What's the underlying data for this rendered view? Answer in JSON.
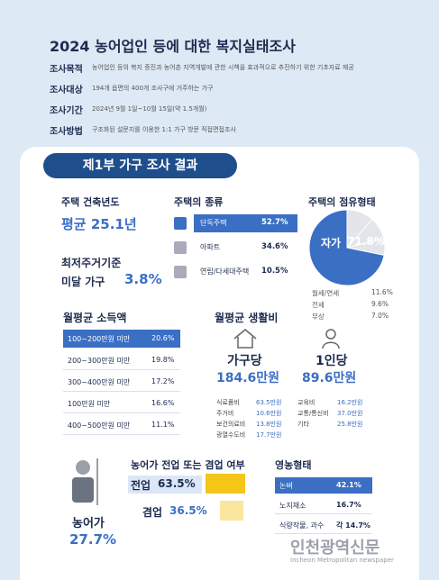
{
  "header": {
    "title": "2024 농어업인 등에 대한 복지실태조사",
    "rows": [
      {
        "label": "조사목적",
        "text": "농어업인 등의 복지 증진과 농어촌 지역개발에 관한 시책을 효과적으로 추진하기 위한 기초자료 제공"
      },
      {
        "label": "조사대상",
        "text": "194개 읍면의 400개 조사구에 거주하는 가구"
      },
      {
        "label": "조사기간",
        "text": "2024년 9월 1일~10월 15일(약 1.5개월)"
      },
      {
        "label": "조사방법",
        "text": "구조화된 설문지를 이용한 1:1 가구 방문 직접면접조사"
      }
    ]
  },
  "section": "제1부 가구 조사 결과",
  "building_age": {
    "title": "주택 건축년도",
    "value": "평균 25.1년"
  },
  "min_housing": {
    "title": "최저주거기준",
    "label": "미달 가구",
    "value": "3.8%"
  },
  "housing_type": {
    "title": "주택의 종류",
    "items": [
      {
        "name": "단독주택",
        "value": "52.7%"
      },
      {
        "name": "아파트",
        "value": "34.6%"
      },
      {
        "name": "연립/다세대주택",
        "value": "10.5%"
      }
    ]
  },
  "tenure": {
    "title": "주택의 점유형태",
    "slices": [
      {
        "name": "자가",
        "value": 71.8,
        "label": "71.8%",
        "color": "#3a6fc4"
      },
      {
        "name": "월세/연세",
        "value": 11.6,
        "label": "11.6%",
        "color": "#e3e5ea"
      },
      {
        "name": "전세",
        "value": 9.6,
        "label": "9.6%",
        "color": "#e3e5ea"
      },
      {
        "name": "무상",
        "value": 7.0,
        "label": "7.0%",
        "color": "#e3e5ea"
      }
    ]
  },
  "income": {
    "title": "월평균 소득액",
    "items": [
      {
        "name": "100~200만원 미만",
        "value": "20.6%"
      },
      {
        "name": "200~300만원 미만",
        "value": "19.8%"
      },
      {
        "name": "300~400만원 미만",
        "value": "17.2%"
      },
      {
        "name": "100만원 미만",
        "value": "16.6%"
      },
      {
        "name": "400~500만원 미만",
        "value": "11.1%"
      }
    ]
  },
  "living_cost": {
    "title": "월평균 생활비",
    "household": {
      "label": "가구당",
      "value": "184.6만원"
    },
    "person": {
      "label": "1인당",
      "value": "89.6만원"
    },
    "items": [
      {
        "name": "식료품비",
        "value": "63.5만원"
      },
      {
        "name": "주거비",
        "value": "10.6만원"
      },
      {
        "name": "보건의료비",
        "value": "13.8만원"
      },
      {
        "name": "광열수도비",
        "value": "17.7만원"
      },
      {
        "name": "교육비",
        "value": "16.2만원"
      },
      {
        "name": "교통/통신비",
        "value": "37.0만원"
      },
      {
        "name": "기타",
        "value": "25.8만원"
      }
    ]
  },
  "farm_household": {
    "label": "농어가",
    "value": "27.7%"
  },
  "fulltime": {
    "title": "농어가 전업 또는 겸업 여부",
    "items": [
      {
        "name": "전업",
        "value": 63.5,
        "label": "63.5%"
      },
      {
        "name": "겸업",
        "value": 36.5,
        "label": "36.5%"
      }
    ]
  },
  "farming_type": {
    "title": "영농형태",
    "items": [
      {
        "name": "논벼",
        "value": "42.1%"
      },
      {
        "name": "노지채소",
        "value": "16.7%"
      },
      {
        "name": "식량작물, 과수",
        "value": "각 14.7%"
      }
    ]
  },
  "watermark": {
    "name": "인천광역신문",
    "sub": "Incheon Metropolitan newspaper"
  }
}
